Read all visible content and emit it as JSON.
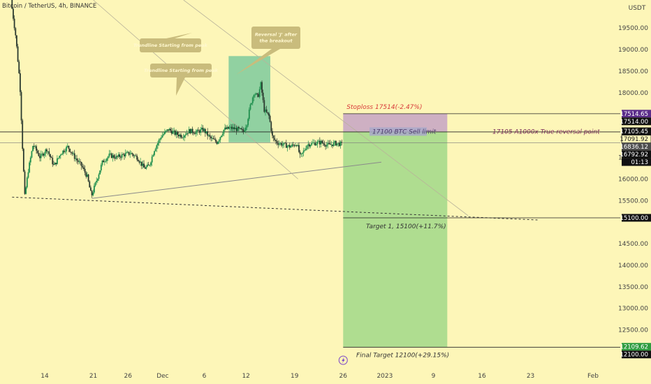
{
  "header": {
    "title": "Bitcoin / TetherUS, 4h, BINANCE"
  },
  "chart_data": {
    "type": "candlestick",
    "y_axis": {
      "unit_label": "USDT",
      "range": [
        11700,
        20150
      ],
      "ticks": [
        {
          "value": 19500,
          "label": "19500.00"
        },
        {
          "value": 19000,
          "label": "19000.00"
        },
        {
          "value": 18500,
          "label": "18500.00"
        },
        {
          "value": 18000,
          "label": "18000.00"
        },
        {
          "value": 16500,
          "label": "16500.00"
        },
        {
          "value": 16000,
          "label": "16000.00"
        },
        {
          "value": 15500,
          "label": "15500.00"
        },
        {
          "value": 14500,
          "label": "14500.00"
        },
        {
          "value": 14000,
          "label": "14000.00"
        },
        {
          "value": 13500,
          "label": "13500.00"
        },
        {
          "value": 13000,
          "label": "13000.00"
        },
        {
          "value": 12500,
          "label": "12500.00"
        }
      ]
    },
    "x_axis": {
      "ticks": [
        {
          "label": "14",
          "day": 14
        },
        {
          "label": "21",
          "day": 21
        },
        {
          "label": "26",
          "day": 26
        },
        {
          "label": "Dec",
          "day": 31
        },
        {
          "label": "6",
          "day": 37
        },
        {
          "label": "12",
          "day": 43
        },
        {
          "label": "19",
          "day": 50
        },
        {
          "label": "26",
          "day": 57
        },
        {
          "label": "2023",
          "day": 63
        },
        {
          "label": "9",
          "day": 70
        },
        {
          "label": "16",
          "day": 77
        },
        {
          "label": "23",
          "day": 84
        },
        {
          "label": "Feb",
          "day": 93
        }
      ]
    },
    "price_path": [
      {
        "day": 9.3,
        "price": 20150
      },
      {
        "day": 10.0,
        "price": 19300
      },
      {
        "day": 10.6,
        "price": 18200
      },
      {
        "day": 11.0,
        "price": 16600
      },
      {
        "day": 11.3,
        "price": 15600
      },
      {
        "day": 11.8,
        "price": 16200
      },
      {
        "day": 12.5,
        "price": 16800
      },
      {
        "day": 13.5,
        "price": 16500
      },
      {
        "day": 14.5,
        "price": 16700
      },
      {
        "day": 15.5,
        "price": 16300
      },
      {
        "day": 16.5,
        "price": 16600
      },
      {
        "day": 17.5,
        "price": 16750
      },
      {
        "day": 18.5,
        "price": 16500
      },
      {
        "day": 19.5,
        "price": 16300
      },
      {
        "day": 20.3,
        "price": 16050
      },
      {
        "day": 20.9,
        "price": 15600
      },
      {
        "day": 21.6,
        "price": 15950
      },
      {
        "day": 22.5,
        "price": 16400
      },
      {
        "day": 23.5,
        "price": 16550
      },
      {
        "day": 24.5,
        "price": 16500
      },
      {
        "day": 25.5,
        "price": 16560
      },
      {
        "day": 26.5,
        "price": 16600
      },
      {
        "day": 27.5,
        "price": 16500
      },
      {
        "day": 28.5,
        "price": 16250
      },
      {
        "day": 29.2,
        "price": 16300
      },
      {
        "day": 30.0,
        "price": 16700
      },
      {
        "day": 31.0,
        "price": 17000
      },
      {
        "day": 32.0,
        "price": 17150
      },
      {
        "day": 33.0,
        "price": 17050
      },
      {
        "day": 34.0,
        "price": 17000
      },
      {
        "day": 35.0,
        "price": 17120
      },
      {
        "day": 36.0,
        "price": 17080
      },
      {
        "day": 37.0,
        "price": 17150
      },
      {
        "day": 38.0,
        "price": 16950
      },
      {
        "day": 39.0,
        "price": 16850
      },
      {
        "day": 40.0,
        "price": 17150
      },
      {
        "day": 41.0,
        "price": 17180
      },
      {
        "day": 42.0,
        "price": 17150
      },
      {
        "day": 42.8,
        "price": 17100
      },
      {
        "day": 43.3,
        "price": 17300
      },
      {
        "day": 43.8,
        "price": 17700
      },
      {
        "day": 44.3,
        "price": 18000
      },
      {
        "day": 44.9,
        "price": 17900
      },
      {
        "day": 45.3,
        "price": 18200
      },
      {
        "day": 45.8,
        "price": 17600
      },
      {
        "day": 46.5,
        "price": 17450
      },
      {
        "day": 47.0,
        "price": 16950
      },
      {
        "day": 47.6,
        "price": 16850
      },
      {
        "day": 48.5,
        "price": 16800
      },
      {
        "day": 49.5,
        "price": 16750
      },
      {
        "day": 50.5,
        "price": 16820
      },
      {
        "day": 51.0,
        "price": 16500
      },
      {
        "day": 52.0,
        "price": 16800
      },
      {
        "day": 53.0,
        "price": 16830
      },
      {
        "day": 54.0,
        "price": 16850
      },
      {
        "day": 55.0,
        "price": 16780
      },
      {
        "day": 56.0,
        "price": 16830
      },
      {
        "day": 56.9,
        "price": 16810
      }
    ],
    "horizontal_levels": [
      {
        "price": 17514,
        "label": "17514.00"
      },
      {
        "price": 17091.92,
        "label": "17091.92"
      },
      {
        "price": 15100,
        "label": "15100.00"
      },
      {
        "price": 12100,
        "label": "12100.00"
      }
    ],
    "price_tags": [
      {
        "price": 17514.65,
        "label": "17514.65",
        "bg": "#5b2c8a",
        "fg": "#ffffff"
      },
      {
        "price": 17514.0,
        "label": "17514.00",
        "bg": "#111111",
        "fg": "#ffffff"
      },
      {
        "price": 17105.45,
        "label": "17105.45",
        "bg": "#111111",
        "fg": "#ffffff"
      },
      {
        "price": 17091.92,
        "label": "17091.92",
        "bg": "#fdf6b8",
        "fg": "#222222",
        "border": "#222222"
      },
      {
        "price": 16836.12,
        "label": "16836.12",
        "bg": "#4d4d4d",
        "fg": "#ffffff"
      },
      {
        "price": 16792.92,
        "label": "16792.92",
        "bg": "#111111",
        "fg": "#ffffff"
      },
      {
        "price": 16590.0,
        "label": "01:13",
        "bg": "#111111",
        "fg": "#ffffff"
      },
      {
        "price": 15100.0,
        "label": "15100.00",
        "bg": "#111111",
        "fg": "#ffffff"
      },
      {
        "price": 12109.62,
        "label": "12109.62",
        "bg": "#2e9c3f",
        "fg": "#ffffff"
      },
      {
        "price": 12100.0,
        "label": "12100.00",
        "bg": "#111111",
        "fg": "#ffffff"
      }
    ],
    "position": {
      "side": "short",
      "entry": 17100,
      "stop": 17514,
      "target": 12100,
      "start_day": 57,
      "end_day": 72,
      "stop_color": "#c9a8c4",
      "profit_color": "#a6da8c"
    },
    "highlight_box": {
      "day_start": 40.5,
      "day_end": 46.5,
      "price_top": 18850,
      "price_bottom": 16850,
      "color": "#6cc49a"
    },
    "trendlines": [
      {
        "from": {
          "day": 20.8,
          "price": 15550
        },
        "to": {
          "day": 62.5,
          "price": 16390
        }
      },
      {
        "from": {
          "day": 9.3,
          "price": 15580
        },
        "to": {
          "day": 85,
          "price": 15050
        }
      },
      {
        "from": {
          "day": 21,
          "price": 20150
        },
        "to": {
          "day": 50.5,
          "price": 16000
        }
      },
      {
        "from": {
          "day": 34,
          "price": 20150
        },
        "to": {
          "day": 75,
          "price": 15150
        }
      }
    ],
    "annotations": {
      "stoploss": "Stoploss 17514(-2.47%)",
      "sell_limit": "17100 BTC Sell limit",
      "reversal_point": "17105 A1000x True reversal point",
      "target1": "Target 1, 15100(+11.7%)",
      "final_target": "Final Target 12100(+29.15%)"
    },
    "notes": [
      {
        "text": "Trendline Starting from peak",
        "lines": [
          "Trendline Starting from peak"
        ]
      },
      {
        "text": "Trendline Starting from peak",
        "lines": [
          "Trendline Starting from peak"
        ]
      },
      {
        "text": "Reversal 'J' after the breakout",
        "lines": [
          "Reversal 'J' after",
          "the breakout"
        ]
      }
    ],
    "colors": {
      "background": "#fdf6b8",
      "bull": "#26a69a",
      "bear": "#26a69a",
      "candle_up": "#1f8f4e",
      "candle_down": "#2b3a2f",
      "note_bg": "#c9bc7c",
      "stoploss_text": "#d83a3a",
      "annotation_text": "#333333",
      "reversal_text": "#7a2b5a"
    }
  }
}
